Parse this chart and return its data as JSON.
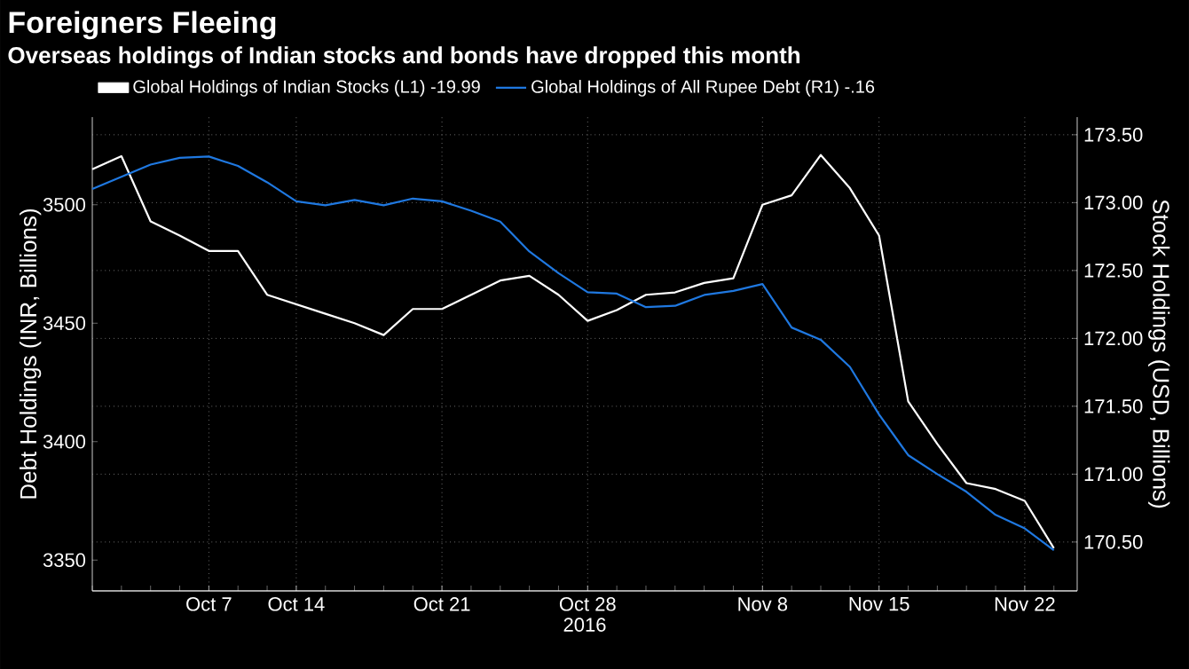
{
  "chart_data": {
    "type": "line",
    "title": "Foreigners Fleeing",
    "subtitle": "Overseas holdings of Indian stocks and bonds have dropped this month",
    "categories": [
      null,
      null,
      null,
      null,
      "Oct 7",
      null,
      null,
      "Oct 14",
      null,
      null,
      null,
      null,
      "Oct 21",
      null,
      null,
      null,
      null,
      "Oct 28",
      null,
      null,
      null,
      null,
      null,
      "Nov 8",
      null,
      null,
      null,
      "Nov 15",
      null,
      null,
      null,
      null,
      "Nov 22",
      null
    ],
    "xlabel": "2016",
    "ylabel": "Debt Holdings (INR, Billions)",
    "y2label": "Stock Holdings (USD, Billions)",
    "ylim": [
      3337,
      3537
    ],
    "yticks": [
      3350,
      3400,
      3450,
      3500
    ],
    "y2lim": [
      170.14,
      173.63
    ],
    "y2ticks": [
      {
        "value": 170.5,
        "label": "170.50"
      },
      {
        "value": 171,
        "label": "171.00"
      },
      {
        "value": 171.5,
        "label": "171.50"
      },
      {
        "value": 172,
        "label": "172.00"
      },
      {
        "value": 172.5,
        "label": "172.50"
      },
      {
        "value": 173,
        "label": "173.00"
      },
      {
        "value": 173.5,
        "label": "173.50"
      }
    ],
    "grid": true,
    "legend": "top",
    "marker": "none",
    "line_style": "solid",
    "series": [
      {
        "name": "Global Holdings of Indian Stocks (L1) -19.99",
        "color": "#ffffff",
        "values": [
          3515,
          3520.5,
          3493,
          3487,
          3480.5,
          3480.5,
          3462,
          3458,
          3454,
          3450,
          3445,
          3456,
          3456,
          3462,
          3468,
          3470,
          3462,
          3451,
          3455.5,
          3462,
          3463,
          3467,
          3469,
          3500,
          3504,
          3521,
          3507,
          3487,
          3417,
          3399,
          3382.5,
          3380,
          3375,
          3355
        ]
      },
      {
        "name": "Global Holdings of All Rupee Debt (R1) -.16",
        "color": "#1f78e0",
        "axis": "y2",
        "values": [
          173.1,
          173.19,
          173.28,
          173.33,
          173.34,
          173.27,
          173.15,
          173.01,
          172.98,
          173.02,
          172.98,
          173.03,
          173.01,
          172.94,
          172.86,
          172.64,
          172.48,
          172.34,
          172.33,
          172.23,
          172.24,
          172.32,
          172.35,
          172.4,
          172.08,
          171.99,
          171.79,
          171.44,
          171.14,
          171.0,
          170.87,
          170.7,
          170.6,
          170.44
        ]
      }
    ]
  }
}
